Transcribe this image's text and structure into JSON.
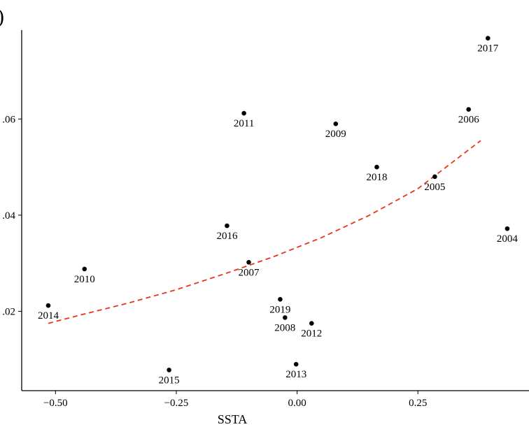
{
  "panel_label": ")",
  "chart_data": {
    "type": "scatter",
    "title": "",
    "xlabel": "SSTA",
    "ylabel": "",
    "xlim": [
      -0.57,
      0.48
    ],
    "ylim": [
      0.0035,
      0.0785
    ],
    "x_ticks": [
      -0.5,
      -0.25,
      0.0,
      0.25
    ],
    "x_tick_labels": [
      "−0.50",
      "−0.25",
      "0.00",
      "0.25"
    ],
    "y_ticks": [
      0.02,
      0.04,
      0.06
    ],
    "y_tick_labels": [
      ".02",
      ".04",
      ".06"
    ],
    "grid": false,
    "points": [
      {
        "label": "2004",
        "x": 0.435,
        "y": 0.0372
      },
      {
        "label": "2005",
        "x": 0.285,
        "y": 0.048
      },
      {
        "label": "2006",
        "x": 0.355,
        "y": 0.062
      },
      {
        "label": "2007",
        "x": -0.1,
        "y": 0.0302
      },
      {
        "label": "2008",
        "x": -0.025,
        "y": 0.0187
      },
      {
        "label": "2009",
        "x": 0.08,
        "y": 0.059
      },
      {
        "label": "2010",
        "x": -0.44,
        "y": 0.0288
      },
      {
        "label": "2011",
        "x": -0.11,
        "y": 0.0612
      },
      {
        "label": "2012",
        "x": 0.03,
        "y": 0.0175
      },
      {
        "label": "2013",
        "x": -0.002,
        "y": 0.009
      },
      {
        "label": "2014",
        "x": -0.515,
        "y": 0.0212
      },
      {
        "label": "2015",
        "x": -0.265,
        "y": 0.0078
      },
      {
        "label": "2016",
        "x": -0.145,
        "y": 0.0378
      },
      {
        "label": "2017",
        "x": 0.395,
        "y": 0.0768
      },
      {
        "label": "2018",
        "x": 0.165,
        "y": 0.05
      },
      {
        "label": "2019",
        "x": -0.035,
        "y": 0.0225
      }
    ],
    "fit_line": {
      "style": "dashed",
      "color": "#e8341c",
      "x": [
        -0.515,
        -0.45,
        -0.35,
        -0.25,
        -0.15,
        -0.05,
        0.05,
        0.15,
        0.25,
        0.38
      ],
      "y": [
        0.0175,
        0.0192,
        0.0217,
        0.0245,
        0.0278,
        0.0313,
        0.0353,
        0.04,
        0.0455,
        0.0555
      ]
    }
  }
}
